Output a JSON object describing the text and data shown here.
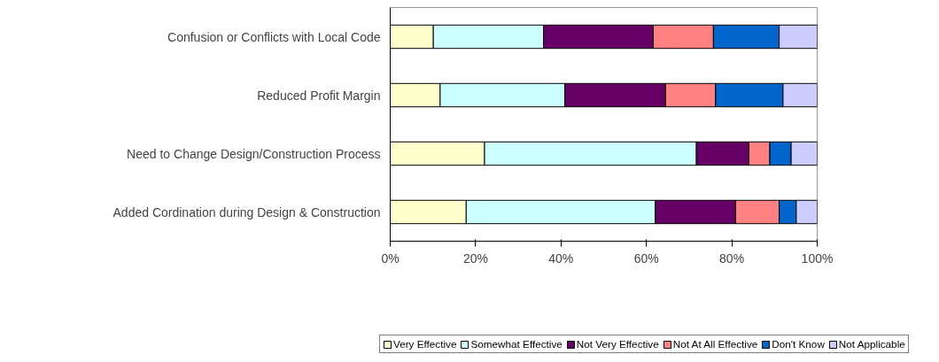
{
  "chart_data": {
    "type": "bar",
    "orientation": "horizontal",
    "stacked": true,
    "categories": [
      "Confusion or Conflicts with Local Code",
      "Reduced Profit Margin",
      "Need to Change Design/Construction Process",
      "Added Cordination during Design & Construction"
    ],
    "series": [
      {
        "name": "Very Effective",
        "color": "#ffffcc",
        "values": [
          10.1,
          11.7,
          22.1,
          17.8
        ]
      },
      {
        "name": "Somewhat Effective",
        "color": "#ccffff",
        "values": [
          25.8,
          29.2,
          49.6,
          44.3
        ]
      },
      {
        "name": "Not Very Effective",
        "color": "#660066",
        "values": [
          25.7,
          23.6,
          12.3,
          18.8
        ]
      },
      {
        "name": "Not At All Effective",
        "color": "#ff8080",
        "values": [
          14.1,
          11.7,
          4.9,
          10.2
        ]
      },
      {
        "name": "Don't Know",
        "color": "#0066cc",
        "values": [
          15.4,
          15.8,
          5.0,
          4.0
        ]
      },
      {
        "name": "Not Applicable",
        "color": "#ccccff",
        "values": [
          8.9,
          8.0,
          6.1,
          4.9
        ]
      }
    ],
    "xlim": [
      0,
      100
    ],
    "xticks": [
      {
        "value": 0,
        "label": "0%"
      },
      {
        "value": 20,
        "label": "20%"
      },
      {
        "value": 40,
        "label": "40%"
      },
      {
        "value": 60,
        "label": "60%"
      },
      {
        "value": 80,
        "label": "80%"
      },
      {
        "value": 100,
        "label": "100%"
      }
    ],
    "grid": false,
    "legend": "bottom"
  }
}
